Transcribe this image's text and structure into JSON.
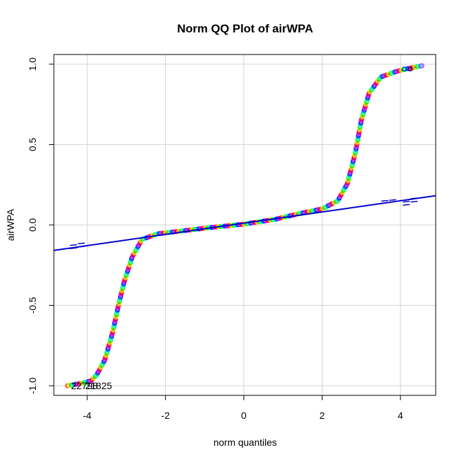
{
  "chart_data": {
    "type": "scatter",
    "subtype": "normal-qq",
    "title": "Norm QQ Plot of airWPA",
    "xlabel": "norm quantiles",
    "ylabel": "airWPA",
    "xlim": [
      -4.85,
      4.9
    ],
    "ylim": [
      -1.06,
      1.06
    ],
    "xticks": [
      -4,
      -2,
      0,
      2,
      4
    ],
    "xtick_labels": [
      "-4",
      "-2",
      "0",
      "2",
      "4"
    ],
    "yticks": [
      -1.0,
      -0.5,
      0.0,
      0.5,
      1.0
    ],
    "ytick_labels": [
      "-1.0",
      "-0.5",
      "0.0",
      "0.5",
      "1.0"
    ],
    "grid": true,
    "reference_line": {
      "intercept": 0.011,
      "slope": 0.0349,
      "color": "#0000CC"
    },
    "envelope_points": [
      {
        "x": -4.35,
        "y": -0.125
      },
      {
        "x": -4.15,
        "y": -0.115
      },
      {
        "x": -4.35,
        "y": -0.145
      },
      {
        "x": -4.15,
        "y": -0.135
      },
      {
        "x": 4.15,
        "y": 0.145
      },
      {
        "x": 4.35,
        "y": 0.165
      },
      {
        "x": 4.15,
        "y": 0.125
      },
      {
        "x": 4.35,
        "y": 0.145
      },
      {
        "x": 3.6,
        "y": 0.15
      },
      {
        "x": 3.8,
        "y": 0.155
      }
    ],
    "series": [
      {
        "name": "airWPA quantiles",
        "anchor_points": [
          {
            "x": -4.5,
            "y": -1.0
          },
          {
            "x": -4.15,
            "y": -0.985
          },
          {
            "x": -3.9,
            "y": -0.97
          },
          {
            "x": -3.75,
            "y": -0.93
          },
          {
            "x": -3.55,
            "y": -0.84
          },
          {
            "x": -3.35,
            "y": -0.67
          },
          {
            "x": -3.2,
            "y": -0.5
          },
          {
            "x": -3.05,
            "y": -0.35
          },
          {
            "x": -2.85,
            "y": -0.2
          },
          {
            "x": -2.6,
            "y": -0.09
          },
          {
            "x": -2.2,
            "y": -0.055
          },
          {
            "x": -1.5,
            "y": -0.035
          },
          {
            "x": -0.8,
            "y": -0.015
          },
          {
            "x": 0.0,
            "y": 0.005
          },
          {
            "x": 0.8,
            "y": 0.035
          },
          {
            "x": 1.5,
            "y": 0.075
          },
          {
            "x": 2.0,
            "y": 0.1
          },
          {
            "x": 2.4,
            "y": 0.15
          },
          {
            "x": 2.65,
            "y": 0.26
          },
          {
            "x": 2.85,
            "y": 0.45
          },
          {
            "x": 3.0,
            "y": 0.65
          },
          {
            "x": 3.2,
            "y": 0.82
          },
          {
            "x": 3.5,
            "y": 0.92
          },
          {
            "x": 3.9,
            "y": 0.955
          },
          {
            "x": 4.15,
            "y": 0.97
          },
          {
            "x": 4.55,
            "y": 0.99
          }
        ]
      }
    ],
    "point_palette": [
      "#FF0000",
      "#FF8000",
      "#FFFF00",
      "#80FF00",
      "#00FF00",
      "#00FF80",
      "#00FFFF",
      "#0080FF",
      "#0000FF",
      "#8000FF",
      "#FF00FF",
      "#FF0080"
    ],
    "annotations": [
      {
        "text": "22798",
        "x": -4.5,
        "y": -1.0
      },
      {
        "text": "21825",
        "x": -4.05,
        "y": -1.0
      }
    ]
  }
}
